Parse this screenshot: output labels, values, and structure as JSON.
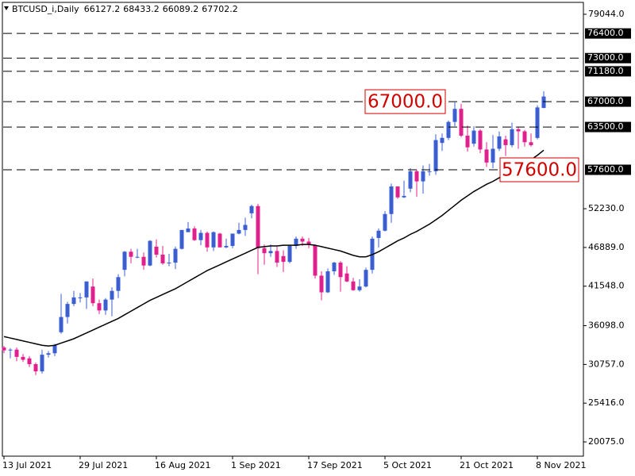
{
  "chart_data": {
    "type": "candlestick",
    "title": "BTCUSD_i,Daily",
    "categories": [
      "13 Jul 2021",
      null,
      null,
      null,
      null,
      null,
      null,
      null,
      null,
      null,
      null,
      null,
      "29 Jul 2021",
      null,
      null,
      null,
      null,
      null,
      null,
      null,
      null,
      null,
      null,
      null,
      "16 Aug 2021",
      null,
      null,
      null,
      null,
      null,
      null,
      null,
      null,
      null,
      null,
      null,
      "1 Sep 2021",
      null,
      null,
      null,
      null,
      null,
      null,
      null,
      null,
      null,
      null,
      null,
      "17 Sep 2021",
      null,
      null,
      null,
      null,
      null,
      null,
      null,
      null,
      null,
      null,
      null,
      "5 Oct 2021",
      null,
      null,
      null,
      null,
      null,
      null,
      null,
      null,
      null,
      null,
      null,
      "21 Oct 2021",
      null,
      null,
      null,
      null,
      null,
      null,
      null,
      null,
      null,
      null,
      null,
      "8 Nov 2021",
      null
    ],
    "open": [
      33100,
      32700,
      32800,
      31800,
      31600,
      30800,
      29800,
      32100,
      32300,
      35200,
      37300,
      39100,
      40000,
      40000,
      41500,
      39200,
      38200,
      39700,
      40900,
      43800,
      46300,
      45600,
      45600,
      44400,
      47000,
      45900,
      44700,
      44800,
      46700,
      49000,
      49500,
      47900,
      48900,
      46900,
      48800,
      46900,
      47100,
      48800,
      49300,
      51600,
      52600,
      46800,
      46100,
      46400,
      45700,
      44900,
      47100,
      48100,
      47700,
      47200,
      43000,
      40700,
      43600,
      44800,
      43300,
      42200,
      41000,
      41500,
      43800,
      48200,
      49200,
      51500,
      55300,
      53800,
      55000,
      57400,
      56000,
      57400,
      57400,
      61300,
      62000,
      64200,
      66000,
      62300,
      61200,
      63000,
      60400,
      58600,
      60500,
      61800,
      61000,
      63200,
      62900,
      61400,
      62000,
      66127.2
    ],
    "high": [
      33300,
      33000,
      33100,
      32200,
      31900,
      31000,
      32800,
      32600,
      33600,
      40500,
      39400,
      40900,
      40600,
      42200,
      42600,
      39700,
      39900,
      41400,
      43200,
      46400,
      46700,
      46700,
      46200,
      47900,
      48000,
      47100,
      46000,
      47000,
      49300,
      50400,
      49800,
      49300,
      49100,
      49100,
      48900,
      48100,
      48800,
      50300,
      51000,
      52800,
      52900,
      47300,
      47300,
      47000,
      46500,
      47200,
      48400,
      48400,
      48200,
      47300,
      43600,
      44000,
      44900,
      45000,
      44300,
      42700,
      42500,
      44100,
      48400,
      49500,
      51900,
      55700,
      55300,
      56100,
      57800,
      57600,
      58200,
      58400,
      62500,
      62600,
      64400,
      66900,
      66700,
      63700,
      63600,
      63200,
      61400,
      62400,
      62900,
      62300,
      64100,
      63500,
      63100,
      62600,
      66500,
      68433.2
    ],
    "low": [
      32300,
      31600,
      31200,
      31100,
      30400,
      29300,
      29500,
      31700,
      31900,
      35000,
      36400,
      38800,
      39300,
      38400,
      38800,
      37700,
      37600,
      37400,
      39900,
      42900,
      44700,
      45400,
      43800,
      44300,
      45500,
      44500,
      44300,
      43900,
      46600,
      49000,
      47800,
      47200,
      46300,
      46400,
      46900,
      46800,
      46800,
      48700,
      48500,
      50900,
      43200,
      44500,
      45600,
      44200,
      43500,
      44700,
      46700,
      47100,
      46800,
      42600,
      39600,
      40600,
      43100,
      40800,
      42100,
      40900,
      40800,
      41400,
      43300,
      46900,
      49100,
      50300,
      53600,
      53700,
      54500,
      53900,
      54300,
      56800,
      56900,
      60200,
      61700,
      63600,
      62100,
      60100,
      60800,
      59900,
      58000,
      57800,
      60200,
      59500,
      60700,
      60500,
      60800,
      60800,
      61800,
      66089.2
    ],
    "close": [
      32700,
      32800,
      31800,
      31400,
      30800,
      29800,
      32100,
      32300,
      33400,
      37300,
      39100,
      40000,
      40000,
      42200,
      39200,
      38200,
      39700,
      40900,
      42800,
      46300,
      45600,
      45600,
      44400,
      47800,
      45900,
      44700,
      44800,
      46700,
      49300,
      49500,
      47900,
      48900,
      46900,
      49000,
      46900,
      47100,
      48800,
      49300,
      50000,
      52600,
      46800,
      46100,
      46400,
      44800,
      44900,
      47100,
      48100,
      47700,
      47300,
      43000,
      40700,
      43600,
      44800,
      42800,
      42200,
      41000,
      41500,
      43800,
      48100,
      49200,
      51500,
      55300,
      53800,
      54000,
      57400,
      56000,
      57400,
      57400,
      61700,
      62000,
      64200,
      66000,
      62300,
      60700,
      63000,
      60400,
      58600,
      60500,
      62200,
      61000,
      63200,
      62900,
      61400,
      61000,
      66200,
      67702.2
    ],
    "up_color": "#3b5fd0",
    "down_color": "#e0208c",
    "ma": {
      "color": "#000000",
      "values": [
        34600,
        34400,
        34200,
        34000,
        33800,
        33600,
        33400,
        33300,
        33400,
        33700,
        34000,
        34300,
        34700,
        35100,
        35500,
        35900,
        36300,
        36700,
        37100,
        37600,
        38100,
        38600,
        39100,
        39600,
        40000,
        40400,
        40800,
        41200,
        41700,
        42200,
        42700,
        43200,
        43700,
        44100,
        44500,
        44900,
        45300,
        45700,
        46100,
        46500,
        46900,
        47000,
        47100,
        47100,
        47200,
        47200,
        47200,
        47300,
        47300,
        47200,
        47000,
        46800,
        46600,
        46400,
        46100,
        45800,
        45600,
        45600,
        45900,
        46300,
        46800,
        47300,
        47800,
        48200,
        48700,
        49100,
        49600,
        50100,
        50700,
        51300,
        52000,
        52700,
        53400,
        54000,
        54600,
        55100,
        55600,
        56000,
        56500,
        57000,
        57500,
        58000,
        58500,
        59000,
        59600,
        60300
      ]
    },
    "ylim": [
      18108,
      80685
    ],
    "yticks": [
      {
        "value": 79044,
        "label": "79044.0"
      },
      {
        "value": 52230,
        "label": "52230.0"
      },
      {
        "value": 46889,
        "label": "46889.0"
      },
      {
        "value": 41548,
        "label": "41548.0"
      },
      {
        "value": 36098,
        "label": "36098.0"
      },
      {
        "value": 30757,
        "label": "30757.0"
      },
      {
        "value": 25416,
        "label": "25416.0"
      },
      {
        "value": 20075,
        "label": "20075.0"
      }
    ],
    "levels": [
      {
        "value": 76400,
        "label": "76400.0"
      },
      {
        "value": 73000,
        "label": "73000.0"
      },
      {
        "value": 71180,
        "label": "71180.0"
      },
      {
        "value": 67000,
        "label": "67000.0"
      },
      {
        "value": 63500,
        "label": "63500.0"
      },
      {
        "value": 57600,
        "label": "57600.0"
      }
    ],
    "annotations": [
      {
        "text": "67000.0",
        "value": 67000
      },
      {
        "text": "57600.0",
        "value": 57600
      }
    ],
    "annotation_color": "#d00000"
  }
}
